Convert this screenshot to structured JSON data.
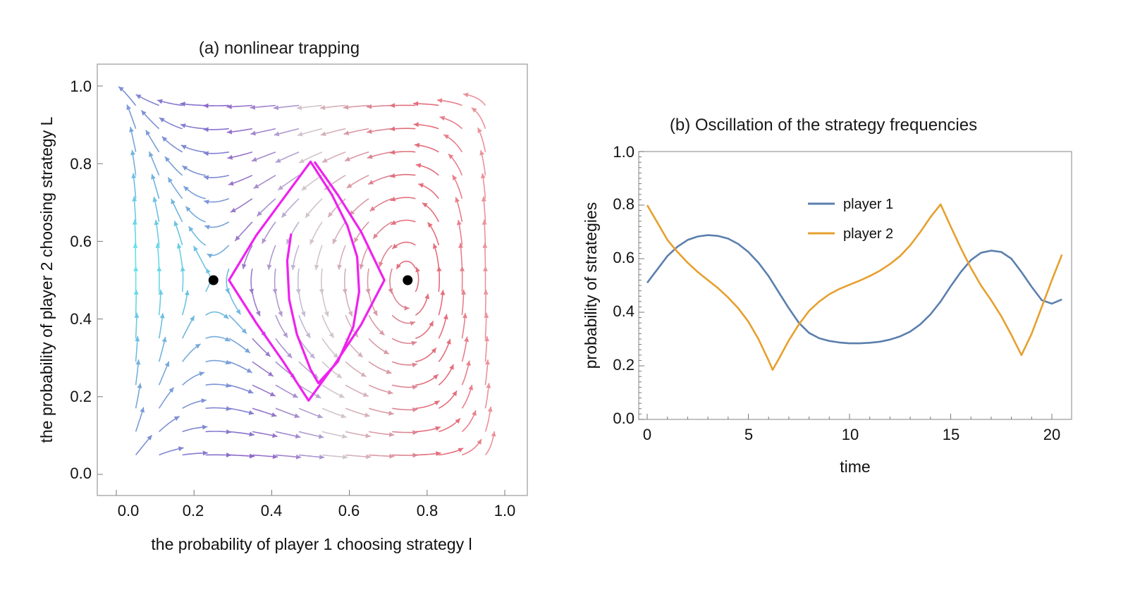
{
  "chart_data": [
    {
      "type": "stream",
      "title": "(a) nonlinear trapping",
      "xlabel": "the probability of player 1 choosing strategy l",
      "ylabel": "the probability of player 2 choosing strategy L",
      "xlim": [
        0,
        1
      ],
      "ylim": [
        0,
        1
      ],
      "xticks": [
        "0.0",
        "0.2",
        "0.4",
        "0.6",
        "0.8",
        "1.0"
      ],
      "yticks": [
        "0.0",
        "0.2",
        "0.4",
        "0.6",
        "0.8",
        "1.0"
      ],
      "fixed_points": [
        {
          "x": 0.25,
          "y": 0.5
        },
        {
          "x": 0.75,
          "y": 0.5
        }
      ],
      "trajectory": {
        "color": "#ee22ee",
        "points": [
          [
            0.45,
            0.62
          ],
          [
            0.44,
            0.55
          ],
          [
            0.445,
            0.45
          ],
          [
            0.465,
            0.36
          ],
          [
            0.5,
            0.27
          ],
          [
            0.52,
            0.235
          ],
          [
            0.57,
            0.29
          ],
          [
            0.61,
            0.38
          ],
          [
            0.625,
            0.47
          ],
          [
            0.62,
            0.56
          ],
          [
            0.595,
            0.64
          ],
          [
            0.555,
            0.72
          ],
          [
            0.5,
            0.805
          ],
          [
            0.43,
            0.71
          ],
          [
            0.36,
            0.615
          ],
          [
            0.29,
            0.5
          ],
          [
            0.36,
            0.39
          ],
          [
            0.43,
            0.29
          ],
          [
            0.495,
            0.19
          ],
          [
            0.56,
            0.28
          ],
          [
            0.63,
            0.385
          ],
          [
            0.69,
            0.5
          ],
          [
            0.63,
            0.625
          ],
          [
            0.57,
            0.72
          ],
          [
            0.51,
            0.805
          ]
        ]
      },
      "colors": {
        "low": "#5ff0ee",
        "mid": "#8c62c8",
        "light": "#cfcfd6",
        "high": "#e36473"
      }
    },
    {
      "type": "line",
      "title": "(b) Oscillation of the strategy frequencies",
      "xlabel": "time",
      "ylabel": "probability of strategies",
      "xlim": [
        0,
        20.5
      ],
      "ylim": [
        0,
        1
      ],
      "xticks": [
        0,
        5,
        10,
        15,
        20
      ],
      "xtick_labels": [
        "0",
        "5",
        "10",
        "15",
        "20"
      ],
      "yticks": [
        0,
        0.2,
        0.4,
        0.6,
        0.8,
        1.0
      ],
      "ytick_labels": [
        "0.0",
        "0.2",
        "0.4",
        "0.6",
        "0.8",
        "1.0"
      ],
      "legend": "upper-center",
      "series": [
        {
          "name": "player 1",
          "color": "#5b7fae",
          "x": [
            0,
            0.5,
            1,
            1.5,
            2,
            2.5,
            3,
            3.5,
            4,
            4.5,
            5,
            5.5,
            6,
            6.5,
            7,
            7.5,
            8,
            8.5,
            9,
            9.5,
            10,
            10.5,
            11,
            11.5,
            12,
            12.5,
            13,
            13.5,
            14,
            14.5,
            15,
            15.5,
            16,
            16.5,
            17,
            17.5,
            18,
            18.5,
            19,
            19.5,
            20,
            20.5
          ],
          "values": [
            0.51,
            0.56,
            0.61,
            0.645,
            0.67,
            0.683,
            0.688,
            0.685,
            0.675,
            0.655,
            0.625,
            0.585,
            0.535,
            0.475,
            0.415,
            0.36,
            0.323,
            0.303,
            0.293,
            0.287,
            0.284,
            0.284,
            0.286,
            0.29,
            0.298,
            0.31,
            0.328,
            0.355,
            0.392,
            0.44,
            0.497,
            0.55,
            0.595,
            0.622,
            0.63,
            0.625,
            0.6,
            0.55,
            0.495,
            0.445,
            0.432,
            0.448
          ]
        },
        {
          "name": "player 2",
          "color": "#e6a02e",
          "x": [
            0,
            0.5,
            1,
            1.5,
            2,
            2.5,
            3,
            3.5,
            4,
            4.5,
            5,
            5.5,
            6,
            6.2,
            6.5,
            7,
            7.5,
            8,
            8.5,
            9,
            9.5,
            10,
            10.5,
            11,
            11.5,
            12,
            12.5,
            13,
            13.5,
            14,
            14.5,
            15,
            15.5,
            16,
            16.5,
            17,
            17.5,
            18,
            18.5,
            19,
            19.5,
            20,
            20.5
          ],
          "values": [
            0.8,
            0.735,
            0.67,
            0.625,
            0.585,
            0.55,
            0.52,
            0.49,
            0.455,
            0.415,
            0.365,
            0.3,
            0.22,
            0.185,
            0.225,
            0.295,
            0.355,
            0.405,
            0.44,
            0.467,
            0.487,
            0.503,
            0.518,
            0.535,
            0.555,
            0.58,
            0.61,
            0.65,
            0.7,
            0.755,
            0.803,
            0.72,
            0.64,
            0.565,
            0.5,
            0.445,
            0.385,
            0.315,
            0.24,
            0.32,
            0.42,
            0.52,
            0.615
          ]
        }
      ]
    }
  ]
}
